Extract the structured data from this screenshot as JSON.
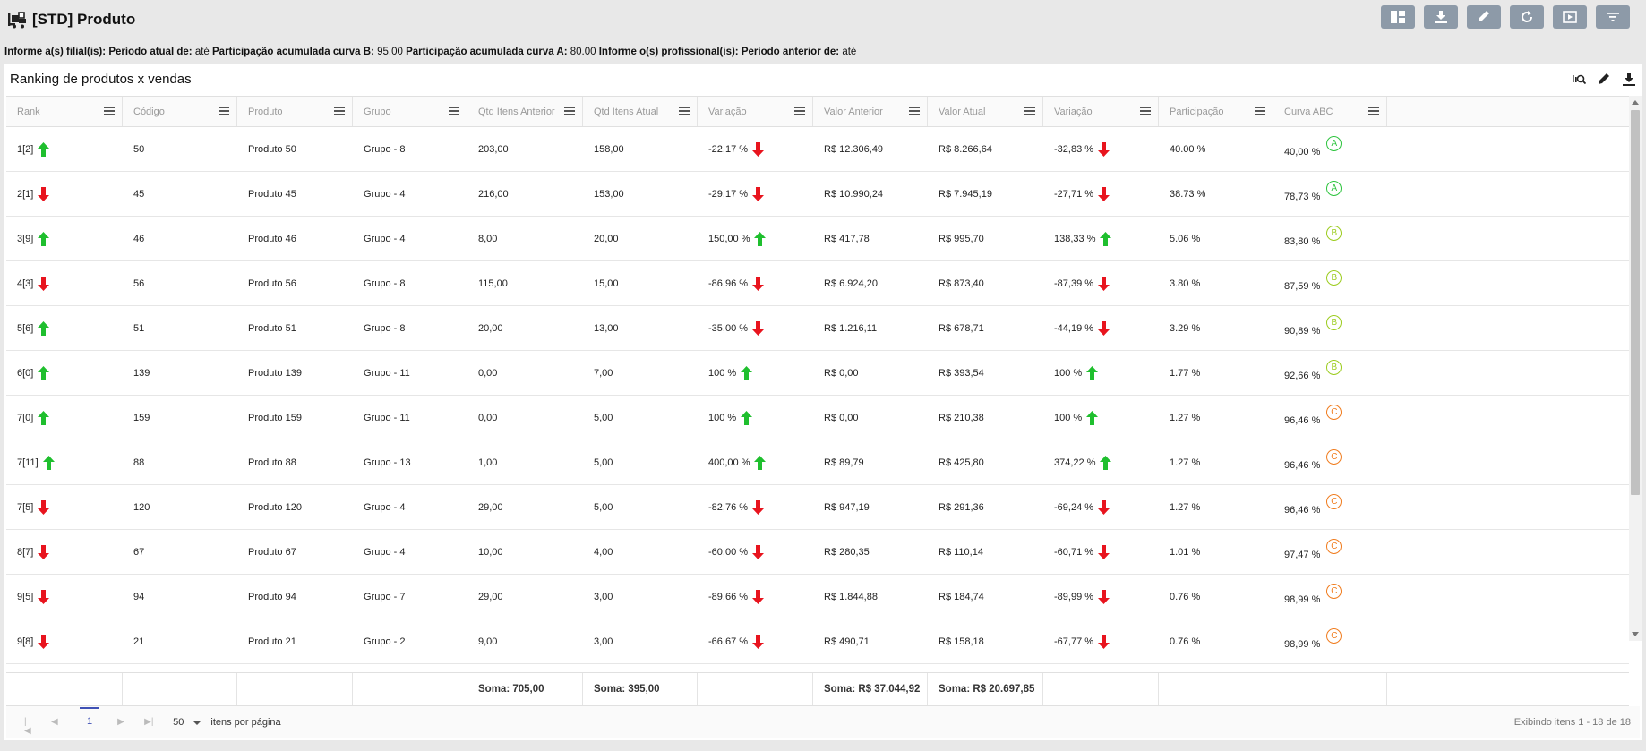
{
  "header": {
    "title": "[STD] Produto",
    "buttons": [
      "layout-icon",
      "download-icon",
      "edit-icon",
      "refresh-icon",
      "play-icon",
      "filter-icon"
    ]
  },
  "filters": {
    "l1": "Informe a(s) filial(is):",
    "l2": "Período atual de:",
    "v2": "até",
    "l3": "Participação acumulada curva B:",
    "v3": "95.00",
    "l4": "Participação acumulada curva A:",
    "v4": "80.00",
    "l5": "Informe o(s) profissional(is):",
    "l6": "Período anterior de:",
    "v6": "até"
  },
  "panel": {
    "title": "Ranking de produtos x vendas"
  },
  "columns": [
    "Rank",
    "Código",
    "Produto",
    "Grupo",
    "Qtd Itens Anterior",
    "Qtd Itens Atual",
    "Variação",
    "Valor Anterior",
    "Valor Atual",
    "Variação",
    "Participação",
    "Curva ABC"
  ],
  "rows": [
    {
      "rank": "1[2]",
      "rank_dir": "up",
      "codigo": "50",
      "produto": "Produto 50",
      "grupo": "Grupo - 8",
      "qtd_ant": "203,00",
      "qtd_atual": "158,00",
      "var_qtd": "-22,17 %",
      "var_qtd_dir": "down",
      "valor_ant": "R$ 12.306,49",
      "valor_atual": "R$ 8.266,64",
      "var_valor": "-32,83 %",
      "var_valor_dir": "down",
      "part": "40.00 %",
      "curva_val": "40,00 %",
      "curva": "A"
    },
    {
      "rank": "2[1]",
      "rank_dir": "down",
      "codigo": "45",
      "produto": "Produto 45",
      "grupo": "Grupo - 4",
      "qtd_ant": "216,00",
      "qtd_atual": "153,00",
      "var_qtd": "-29,17 %",
      "var_qtd_dir": "down",
      "valor_ant": "R$ 10.990,24",
      "valor_atual": "R$ 7.945,19",
      "var_valor": "-27,71 %",
      "var_valor_dir": "down",
      "part": "38.73 %",
      "curva_val": "78,73 %",
      "curva": "A"
    },
    {
      "rank": "3[9]",
      "rank_dir": "up",
      "codigo": "46",
      "produto": "Produto 46",
      "grupo": "Grupo - 4",
      "qtd_ant": "8,00",
      "qtd_atual": "20,00",
      "var_qtd": "150,00 %",
      "var_qtd_dir": "up",
      "valor_ant": "R$ 417,78",
      "valor_atual": "R$ 995,70",
      "var_valor": "138,33 %",
      "var_valor_dir": "up",
      "part": "5.06 %",
      "curva_val": "83,80 %",
      "curva": "B"
    },
    {
      "rank": "4[3]",
      "rank_dir": "down",
      "codigo": "56",
      "produto": "Produto 56",
      "grupo": "Grupo - 8",
      "qtd_ant": "115,00",
      "qtd_atual": "15,00",
      "var_qtd": "-86,96 %",
      "var_qtd_dir": "down",
      "valor_ant": "R$ 6.924,20",
      "valor_atual": "R$ 873,40",
      "var_valor": "-87,39 %",
      "var_valor_dir": "down",
      "part": "3.80 %",
      "curva_val": "87,59 %",
      "curva": "B"
    },
    {
      "rank": "5[6]",
      "rank_dir": "up",
      "codigo": "51",
      "produto": "Produto 51",
      "grupo": "Grupo - 8",
      "qtd_ant": "20,00",
      "qtd_atual": "13,00",
      "var_qtd": "-35,00 %",
      "var_qtd_dir": "down",
      "valor_ant": "R$ 1.216,11",
      "valor_atual": "R$ 678,71",
      "var_valor": "-44,19 %",
      "var_valor_dir": "down",
      "part": "3.29 %",
      "curva_val": "90,89 %",
      "curva": "B"
    },
    {
      "rank": "6[0]",
      "rank_dir": "up",
      "codigo": "139",
      "produto": "Produto 139",
      "grupo": "Grupo - 11",
      "qtd_ant": "0,00",
      "qtd_atual": "7,00",
      "var_qtd": "100 %",
      "var_qtd_dir": "up",
      "valor_ant": "R$ 0,00",
      "valor_atual": "R$ 393,54",
      "var_valor": "100 %",
      "var_valor_dir": "up",
      "part": "1.77 %",
      "curva_val": "92,66 %",
      "curva": "B"
    },
    {
      "rank": "7[0]",
      "rank_dir": "up",
      "codigo": "159",
      "produto": "Produto 159",
      "grupo": "Grupo - 11",
      "qtd_ant": "0,00",
      "qtd_atual": "5,00",
      "var_qtd": "100 %",
      "var_qtd_dir": "up",
      "valor_ant": "R$ 0,00",
      "valor_atual": "R$ 210,38",
      "var_valor": "100 %",
      "var_valor_dir": "up",
      "part": "1.27 %",
      "curva_val": "96,46 %",
      "curva": "C"
    },
    {
      "rank": "7[11]",
      "rank_dir": "up",
      "codigo": "88",
      "produto": "Produto 88",
      "grupo": "Grupo - 13",
      "qtd_ant": "1,00",
      "qtd_atual": "5,00",
      "var_qtd": "400,00 %",
      "var_qtd_dir": "up",
      "valor_ant": "R$ 89,79",
      "valor_atual": "R$ 425,80",
      "var_valor": "374,22 %",
      "var_valor_dir": "up",
      "part": "1.27 %",
      "curva_val": "96,46 %",
      "curva": "C"
    },
    {
      "rank": "7[5]",
      "rank_dir": "down",
      "codigo": "120",
      "produto": "Produto 120",
      "grupo": "Grupo - 4",
      "qtd_ant": "29,00",
      "qtd_atual": "5,00",
      "var_qtd": "-82,76 %",
      "var_qtd_dir": "down",
      "valor_ant": "R$ 947,19",
      "valor_atual": "R$ 291,36",
      "var_valor": "-69,24 %",
      "var_valor_dir": "down",
      "part": "1.27 %",
      "curva_val": "96,46 %",
      "curva": "C"
    },
    {
      "rank": "8[7]",
      "rank_dir": "down",
      "codigo": "67",
      "produto": "Produto 67",
      "grupo": "Grupo - 4",
      "qtd_ant": "10,00",
      "qtd_atual": "4,00",
      "var_qtd": "-60,00 %",
      "var_qtd_dir": "down",
      "valor_ant": "R$ 280,35",
      "valor_atual": "R$ 110,14",
      "var_valor": "-60,71 %",
      "var_valor_dir": "down",
      "part": "1.01 %",
      "curva_val": "97,47 %",
      "curva": "C"
    },
    {
      "rank": "9[5]",
      "rank_dir": "down",
      "codigo": "94",
      "produto": "Produto 94",
      "grupo": "Grupo - 7",
      "qtd_ant": "29,00",
      "qtd_atual": "3,00",
      "var_qtd": "-89,66 %",
      "var_qtd_dir": "down",
      "valor_ant": "R$ 1.844,88",
      "valor_atual": "R$ 184,74",
      "var_valor": "-89,99 %",
      "var_valor_dir": "down",
      "part": "0.76 %",
      "curva_val": "98,99 %",
      "curva": "C"
    },
    {
      "rank": "9[8]",
      "rank_dir": "down",
      "codigo": "21",
      "produto": "Produto 21",
      "grupo": "Grupo - 2",
      "qtd_ant": "9,00",
      "qtd_atual": "3,00",
      "var_qtd": "-66,67 %",
      "var_qtd_dir": "down",
      "valor_ant": "R$ 490,71",
      "valor_atual": "R$ 158,18",
      "var_valor": "-67,77 %",
      "var_valor_dir": "down",
      "part": "0.76 %",
      "curva_val": "98,99 %",
      "curva": "C"
    }
  ],
  "footer": {
    "qtd_ant": "Soma: 705,00",
    "qtd_atual": "Soma: 395,00",
    "valor_ant": "Soma: R$ 37.044,92",
    "valor_atual": "Soma: R$ 20.697,85"
  },
  "pager": {
    "page": "1",
    "page_size": "50",
    "page_size_label": "itens por página",
    "info": "Exibindo itens 1 - 18 de 18"
  },
  "colors": {
    "up": "#1fbf2e",
    "down": "#e8141e",
    "curva_A": "#2ec43e",
    "curva_B": "#9ccc1f",
    "curva_C": "#f07c1e",
    "toolbar_button": "#8d9aa8"
  }
}
